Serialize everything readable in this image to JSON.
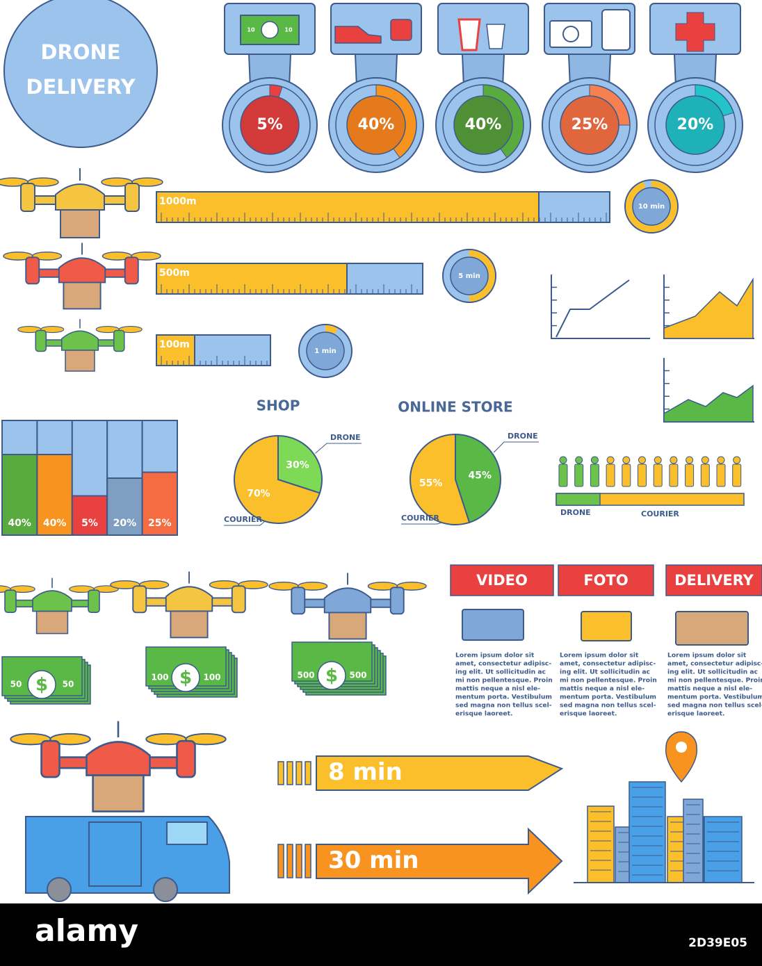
{
  "title": {
    "line1": "DRONE",
    "line2": "DELIVERY"
  },
  "donuts": {
    "bill_label": "10",
    "items": [
      {
        "value": 5,
        "label": "5%",
        "color": "#e8413f",
        "inner": "#d33a3a"
      },
      {
        "value": 40,
        "label": "40%",
        "color": "#f7931e",
        "inner": "#e57a1c"
      },
      {
        "value": 40,
        "label": "40%",
        "color": "#5aab3f",
        "inner": "#4f8f35"
      },
      {
        "value": 25,
        "label": "25%",
        "color": "#f6804f",
        "inner": "#e0663d"
      },
      {
        "value": 20,
        "label": "20%",
        "color": "#22c3c9",
        "inner": "#1fb1b8"
      }
    ]
  },
  "distances": [
    {
      "label": "1000m",
      "time": "10 min"
    },
    {
      "label": "500m",
      "time": "5 min"
    },
    {
      "label": "100m",
      "time": "1 min"
    }
  ],
  "bar_chart": {
    "type": "bar",
    "values": [
      40,
      40,
      5,
      20,
      25
    ],
    "value_labels": [
      "40%",
      "40%",
      "5%",
      "20%",
      "25%"
    ],
    "colors": [
      "#5aab3f",
      "#f7931e",
      "#e8413f",
      "#7f9fc2",
      "#f56b42"
    ]
  },
  "pies": [
    {
      "type": "pie",
      "title": "SHOP",
      "series": [
        {
          "name": "DRONE",
          "value": 30,
          "label": "30%",
          "color": "#7ed957"
        },
        {
          "name": "COURIER",
          "value": 70,
          "label": "70%",
          "color": "#fbbf2c"
        }
      ]
    },
    {
      "type": "pie",
      "title": "ONLINE STORE",
      "series": [
        {
          "name": "DRONE",
          "value": 45,
          "label": "45%",
          "color": "#5ab946"
        },
        {
          "name": "COURIER",
          "value": 55,
          "label": "55%",
          "color": "#fbbf2c"
        }
      ]
    }
  ],
  "people_bar": {
    "drone": "DRONE",
    "courier": "COURIER"
  },
  "prices": [
    "50",
    "100",
    "500"
  ],
  "cards": [
    {
      "title": "VIDEO",
      "lines": [
        "Lorem ipsum dolor sit",
        "amet, consectetur adipisc-",
        "ing elit. Ut sollicitudin ac",
        "mi non pellentesque. Proin",
        "mattis neque a nisl ele-",
        "mentum porta. Vestibulum",
        "sed magna non tellus scel-",
        "erisque laoreet."
      ]
    },
    {
      "title": "FOTO",
      "lines": [
        "Lorem ipsum dolor sit",
        "amet, consectetur adipisc-",
        "ing elit. Ut sollicitudin ac",
        "mi non pellentesque. Proin",
        "mattis neque a nisl ele-",
        "mentum porta. Vestibulum",
        "sed magna non tellus scel-",
        "erisque laoreet."
      ]
    },
    {
      "title": "DELIVERY",
      "lines": [
        "Lorem ipsum dolor sit",
        "amet, consectetur adipisc-",
        "ing elit. Ut sollicitudin ac",
        "mi non pellentesque. Proin",
        "mattis neque a nisl ele-",
        "mentum porta. Vestibulum",
        "sed magna non tellus scel-",
        "erisque laoreet."
      ]
    }
  ],
  "arrows": [
    "8 min",
    "30 min"
  ],
  "footer": {
    "brand": "alamy",
    "id": "2D39E05"
  }
}
